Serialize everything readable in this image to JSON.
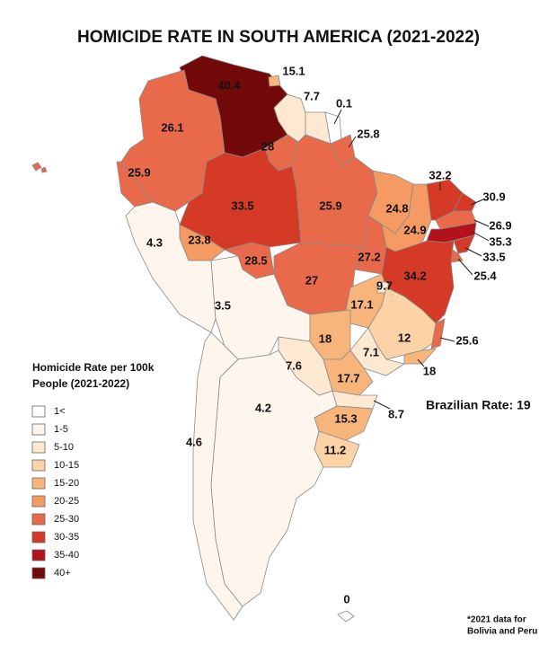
{
  "title": "HOMICIDE RATE IN SOUTH AMERICA (2021-2022)",
  "legend": {
    "title": [
      "Homicide Rate per 100k",
      "People (2021-2022)"
    ],
    "items": [
      {
        "label": "1<",
        "color": "#ffffff"
      },
      {
        "label": "1-5",
        "color": "#fef6ec"
      },
      {
        "label": "5-10",
        "color": "#fde9d2"
      },
      {
        "label": "10-15",
        "color": "#fcd3a6"
      },
      {
        "label": "15-20",
        "color": "#f7b57c"
      },
      {
        "label": "20-25",
        "color": "#f59a63"
      },
      {
        "label": "25-30",
        "color": "#e86a4b"
      },
      {
        "label": "30-35",
        "color": "#d43a26"
      },
      {
        "label": "35-40",
        "color": "#b3121a"
      },
      {
        "label": "40+",
        "color": "#720a0a"
      }
    ]
  },
  "regions": [
    {
      "value": 40.4,
      "color": "#720a0a"
    },
    {
      "value": 15.1,
      "color": "#f7b57c"
    },
    {
      "value": 7.7,
      "color": "#fde9d2"
    },
    {
      "value": 0.1,
      "color": "#ffffff"
    },
    {
      "value": 26.1,
      "color": "#e86a4b"
    },
    {
      "value": 25.9,
      "color": "#e86a4b"
    },
    {
      "value": 4.3,
      "color": "#fef6ec"
    },
    {
      "value": 3.5,
      "color": "#fef6ec"
    },
    {
      "value": 4.6,
      "color": "#fef6ec"
    },
    {
      "value": 4.2,
      "color": "#fef6ec"
    },
    {
      "value": 7.6,
      "color": "#fde9d2"
    },
    {
      "value": 11.2,
      "color": "#fcd3a6"
    },
    {
      "value": 0,
      "color": "#ffffff"
    },
    {
      "value": 28,
      "color": "#e86a4b"
    },
    {
      "value": 25.8,
      "color": "#e86a4b"
    },
    {
      "value": 33.5,
      "color": "#d43a26"
    },
    {
      "value": 23.8,
      "color": "#f59a63"
    },
    {
      "value": 28.5,
      "color": "#e86a4b"
    },
    {
      "value": 25.9,
      "color": "#e86a4b"
    },
    {
      "value": 27,
      "color": "#e86a4b"
    },
    {
      "value": 27.2,
      "color": "#e86a4b"
    },
    {
      "value": 24.8,
      "color": "#f59a63"
    },
    {
      "value": 24.9,
      "color": "#f59a63"
    },
    {
      "value": 32.2,
      "color": "#d43a26"
    },
    {
      "value": 30.9,
      "color": "#d43a26"
    },
    {
      "value": 26.9,
      "color": "#e86a4b"
    },
    {
      "value": 35.3,
      "color": "#b3121a"
    },
    {
      "value": 33.5,
      "color": "#d43a26"
    },
    {
      "value": 25.4,
      "color": "#e86a4b"
    },
    {
      "value": 34.2,
      "color": "#d43a26"
    },
    {
      "value": 17.1,
      "color": "#f7b57c"
    },
    {
      "value": 9.7,
      "color": "#fde9d2"
    },
    {
      "value": 12,
      "color": "#fcd3a6"
    },
    {
      "value": 25.6,
      "color": "#e86a4b"
    },
    {
      "value": 18,
      "color": "#f7b57c"
    },
    {
      "value": 7.1,
      "color": "#fde9d2"
    },
    {
      "value": 18,
      "color": "#f7b57c"
    },
    {
      "value": 17.7,
      "color": "#f7b57c"
    },
    {
      "value": 8.7,
      "color": "#fde9d2"
    },
    {
      "value": 15.3,
      "color": "#f7b57c"
    }
  ],
  "brazil_rate": "Brazilian Rate: 19",
  "footnote": [
    "*2021 data for",
    "Bolivia and Peru"
  ]
}
